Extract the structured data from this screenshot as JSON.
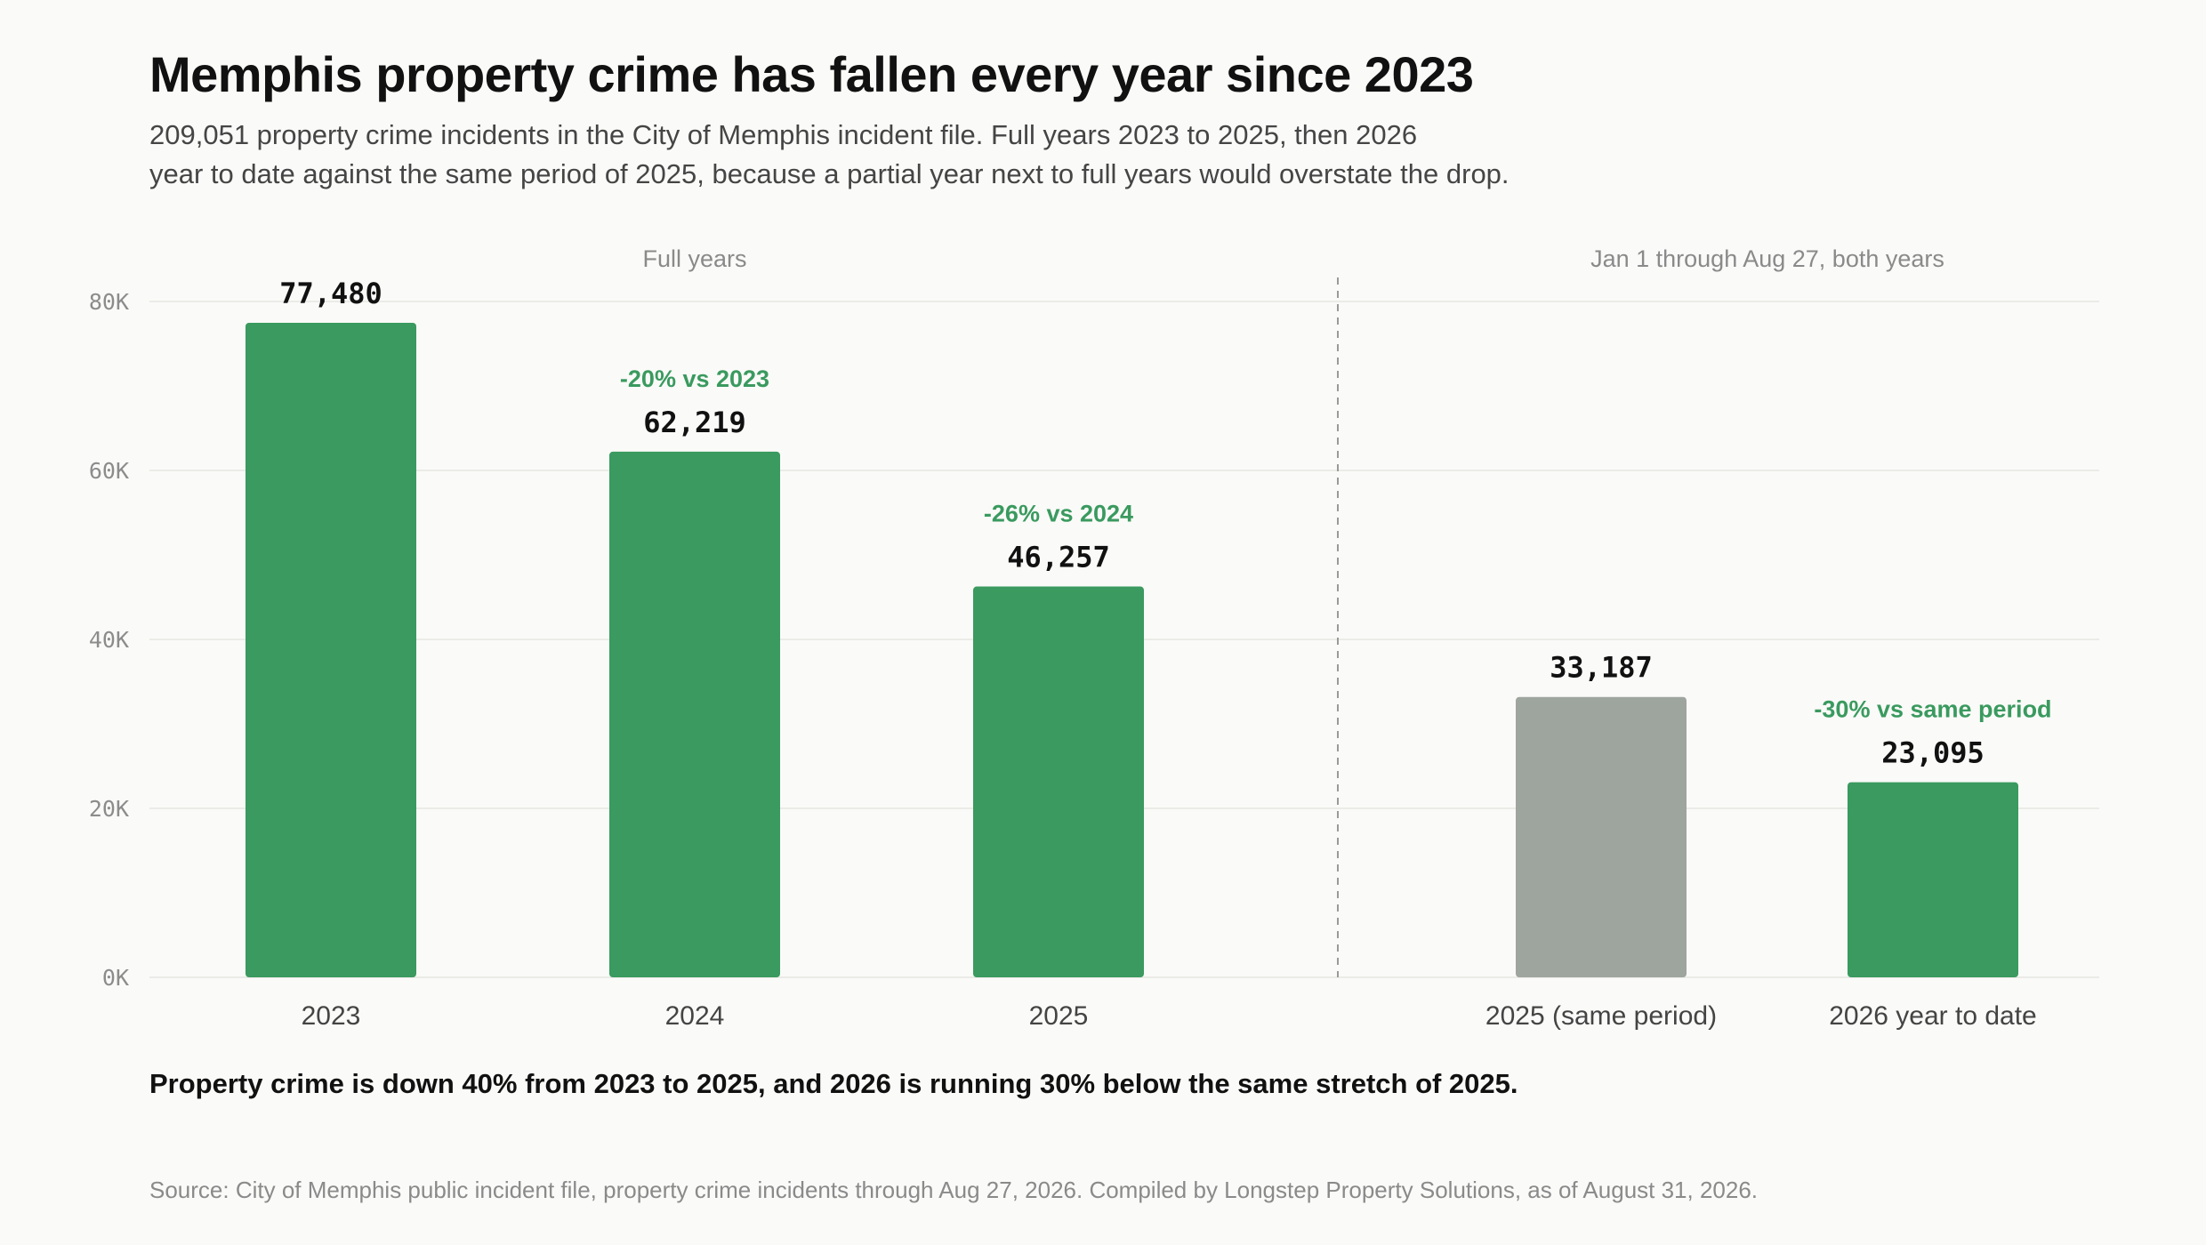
{
  "header": {
    "title": "Memphis property crime has fallen every year since 2023",
    "subtitle_line1": "209,051 property crime incidents in the City of Memphis incident file. Full years 2023 to 2025, then 2026",
    "subtitle_line2": "year to date against the same period of 2025, because a partial year next to full years would overstate the drop."
  },
  "chart_data": {
    "type": "bar",
    "title": "Memphis property crime has fallen every year since 2023",
    "ylim": [
      0,
      80000
    ],
    "y_ticks": [
      {
        "value": 0,
        "label": "0K"
      },
      {
        "value": 20000,
        "label": "20K"
      },
      {
        "value": 40000,
        "label": "40K"
      },
      {
        "value": 60000,
        "label": "60K"
      },
      {
        "value": 80000,
        "label": "80K"
      }
    ],
    "grid": true,
    "panels": [
      {
        "label": "Full years"
      },
      {
        "label": "Jan 1 through Aug 27, both years"
      }
    ],
    "bars": [
      {
        "category": "2023",
        "value": 77480,
        "label": "77,480",
        "change": "",
        "panel": 0,
        "color": "#3a9a5f"
      },
      {
        "category": "2024",
        "value": 62219,
        "label": "62,219",
        "change": "-20% vs 2023",
        "panel": 0,
        "color": "#3a9a5f"
      },
      {
        "category": "2025",
        "value": 46257,
        "label": "46,257",
        "change": "-26% vs 2024",
        "panel": 0,
        "color": "#3a9a5f"
      },
      {
        "category": "2025 (same period)",
        "value": 33187,
        "label": "33,187",
        "change": "",
        "panel": 1,
        "color": "#9ea59f"
      },
      {
        "category": "2026 year to date",
        "value": 23095,
        "label": "23,095",
        "change": "-30% vs same period",
        "panel": 1,
        "color": "#3a9a5f"
      }
    ]
  },
  "colors": {
    "accent_green": "#3a9a5f",
    "comparison_gray": "#9ea59f",
    "change_label_green": "#3a9a5f"
  },
  "footer": {
    "takeaway": "Property crime is down 40% from 2023 to 2025, and 2026 is running 30% below the same stretch of 2025.",
    "source": "Source: City of Memphis public incident file, property crime incidents through Aug 27, 2026. Compiled by Longstep Property Solutions, as of August 31, 2026."
  }
}
